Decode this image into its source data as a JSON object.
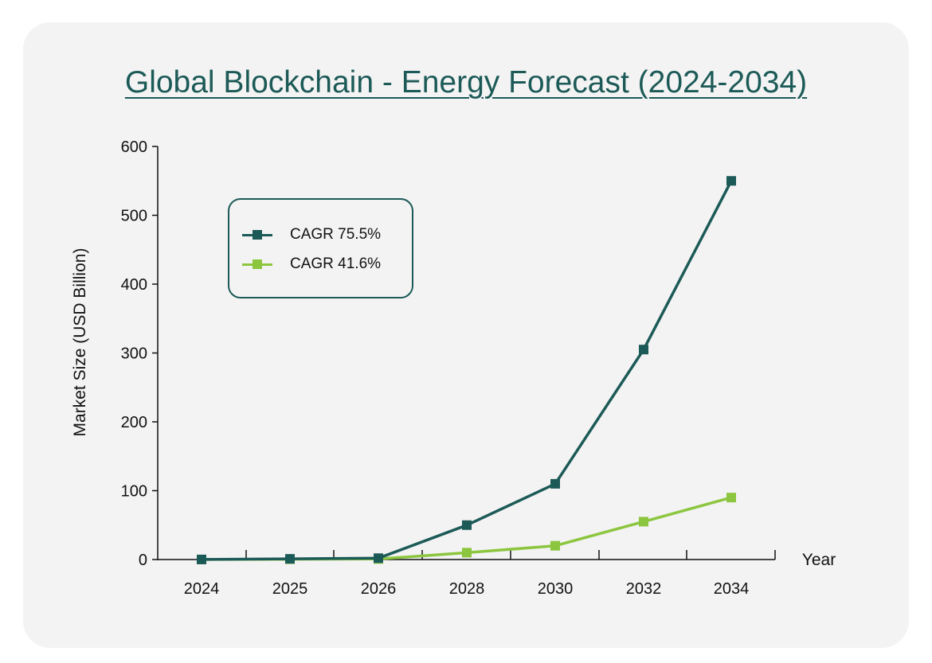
{
  "chart_data": {
    "type": "line",
    "title": "Global Blockchain - Energy Forecast (2024-2034)",
    "xlabel": "Year",
    "ylabel": "Market Size (USD Billion)",
    "categories": [
      "2024",
      "2025",
      "2026",
      "2028",
      "2030",
      "2032",
      "2034"
    ],
    "ylim": [
      0,
      600
    ],
    "yticks": [
      0,
      100,
      200,
      300,
      400,
      500,
      600
    ],
    "series": [
      {
        "name": "CAGR 75.5%",
        "color": "#1c5a57",
        "values": [
          0.1,
          1,
          2,
          50,
          110,
          305,
          550
        ]
      },
      {
        "name": "CAGR 41.6%",
        "color": "#8cc63f",
        "values": [
          0.1,
          0.5,
          0.8,
          10,
          20,
          55,
          90
        ]
      }
    ],
    "grid": false,
    "legend_position": "top-left",
    "marker": "square"
  }
}
